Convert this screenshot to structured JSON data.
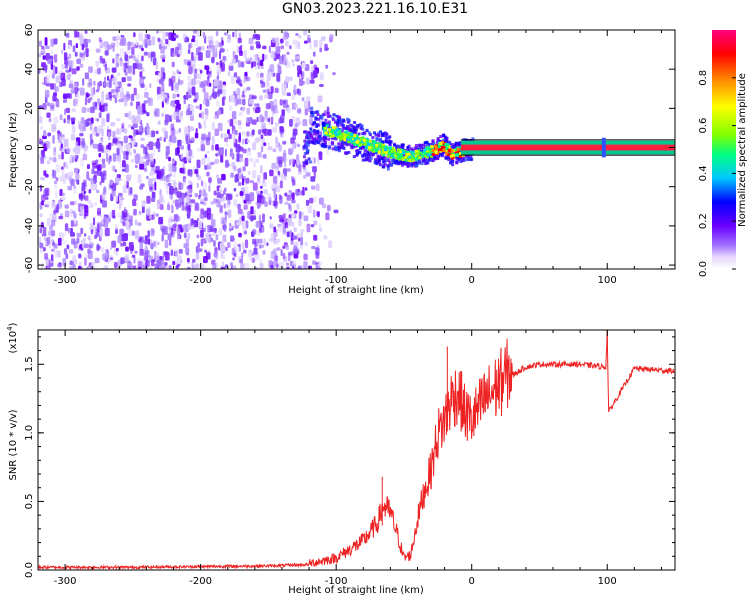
{
  "figure": {
    "title": "GN03.2023.221.16.10.E31"
  },
  "chart_data": [
    {
      "type": "heatmap",
      "panel": "spectrogram",
      "xlabel": "Height of straight line (km)",
      "ylabel": "Frequency (Hz)",
      "xlim": [
        -320,
        150
      ],
      "ylim": [
        -62,
        60
      ],
      "xticks": [
        -300,
        -200,
        -100,
        0,
        100
      ],
      "yticks": [
        60,
        40,
        20,
        0,
        -20,
        -40,
        -60
      ],
      "colorbar": {
        "label": "Normalized spectral amplitude",
        "range": [
          0,
          1
        ],
        "ticks": [
          0.0,
          0.2,
          0.4,
          0.6,
          0.8
        ],
        "colormap": [
          "#ffffff",
          "#e8d8ff",
          "#a070ff",
          "#6a00ff",
          "#0000ff",
          "#00c8ff",
          "#00ff80",
          "#80ff00",
          "#ffff00",
          "#ff8000",
          "#ff0000",
          "#ff0080"
        ]
      },
      "features": {
        "broadband_noise_extent_km": [
          -320,
          -110
        ],
        "signal_track": [
          {
            "x": -120,
            "f": 12
          },
          {
            "x": -100,
            "f": 8
          },
          {
            "x": -80,
            "f": 3
          },
          {
            "x": -60,
            "f": -2
          },
          {
            "x": -45,
            "f": -4
          },
          {
            "x": -30,
            "f": -1
          },
          {
            "x": -22,
            "f": 2
          },
          {
            "x": -15,
            "f": -3
          },
          {
            "x": -5,
            "f": 0
          },
          {
            "x": 0,
            "f": 0
          },
          {
            "x": 150,
            "f": 0
          }
        ],
        "stable_tone_band_hz": [
          -1.5,
          1.5
        ]
      }
    },
    {
      "type": "line",
      "panel": "snr",
      "xlabel": "Height of straight line (km)",
      "ylabel": "SNR (10 * v/v)",
      "y_multiplier_label": "(x10",
      "y_multiplier_exp": "4",
      "xlim": [
        -320,
        150
      ],
      "ylim": [
        0,
        1.75
      ],
      "xticks": [
        -300,
        -200,
        -100,
        0,
        100
      ],
      "yticks": [
        0.0,
        0.5,
        1.0,
        1.5
      ],
      "series": [
        {
          "color": "#ee2222",
          "x": [
            -320,
            -250,
            -200,
            -150,
            -120,
            -100,
            -90,
            -80,
            -70,
            -65,
            -60,
            -55,
            -50,
            -45,
            -40,
            -35,
            -30,
            -25,
            -20,
            -15,
            -10,
            -5,
            0,
            10,
            20,
            30,
            40,
            50,
            60,
            80,
            99,
            100,
            101,
            120,
            150
          ],
          "y": [
            0.02,
            0.02,
            0.025,
            0.03,
            0.04,
            0.08,
            0.14,
            0.2,
            0.32,
            0.45,
            0.4,
            0.25,
            0.08,
            0.1,
            0.35,
            0.55,
            0.7,
            0.95,
            1.05,
            1.2,
            1.25,
            1.1,
            1.05,
            1.2,
            1.3,
            1.42,
            1.48,
            1.5,
            1.5,
            1.5,
            1.48,
            1.75,
            1.15,
            1.47,
            1.45
          ]
        }
      ],
      "annotations": {
        "spikes": [
          {
            "x": -18,
            "y": 1.63
          },
          {
            "x": 100,
            "y": 1.75
          },
          {
            "x": -66,
            "y": 0.68
          }
        ]
      }
    }
  ]
}
